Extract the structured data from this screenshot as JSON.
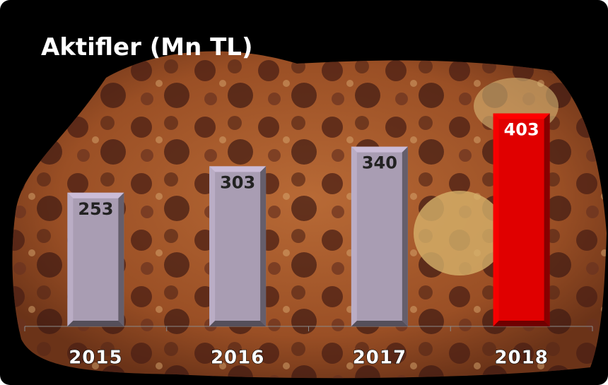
{
  "chart_data": {
    "type": "bar",
    "title": "Aktifler (Mn TL)",
    "categories": [
      "2015",
      "2016",
      "2017",
      "2018"
    ],
    "values": [
      253,
      303,
      340,
      403
    ],
    "colors": [
      "#a99db3",
      "#a99db3",
      "#a99db3",
      "#e00000"
    ],
    "value_label_colors": [
      "#222222",
      "#222222",
      "#222222",
      "#ffffff"
    ],
    "ylim": [
      0,
      450
    ]
  }
}
